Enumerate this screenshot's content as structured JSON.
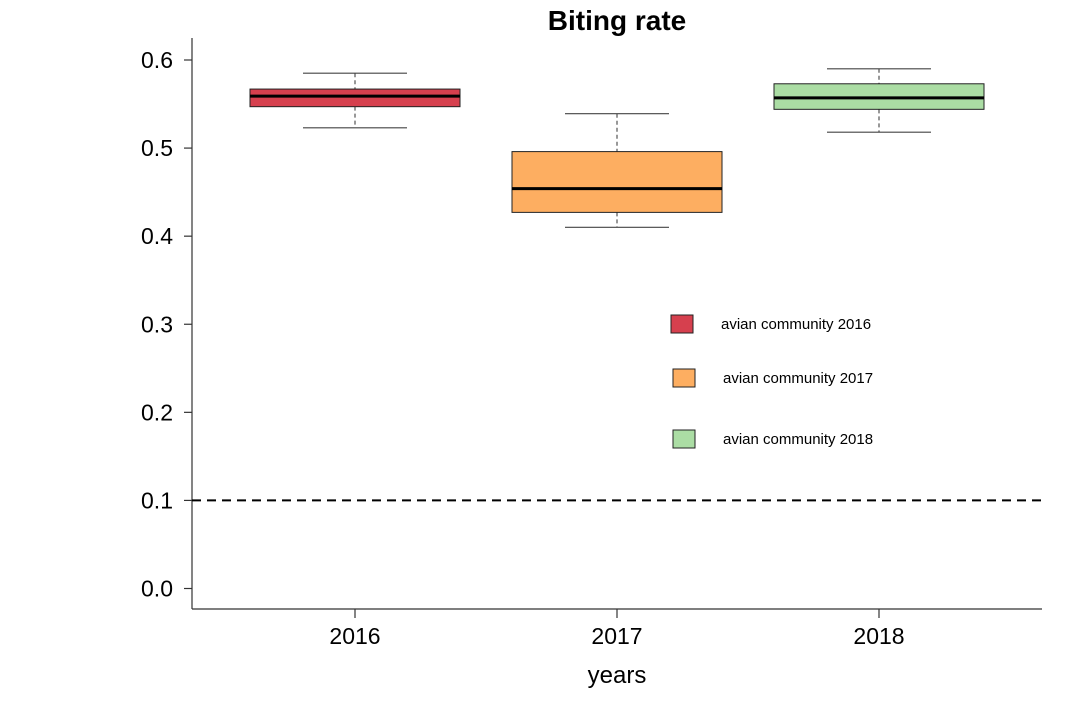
{
  "chart_data": {
    "type": "box",
    "title": "Biting rate",
    "xlabel": "years",
    "ylabel": "",
    "ylim": [
      0,
      0.62
    ],
    "yticks": [
      0.0,
      0.1,
      0.2,
      0.3,
      0.4,
      0.5,
      0.6
    ],
    "ytick_labels": [
      "0.0",
      "0.1",
      "0.2",
      "0.3",
      "0.4",
      "0.5",
      "0.6"
    ],
    "categories": [
      "2016",
      "2017",
      "2018"
    ],
    "boxes": [
      {
        "category": "2016",
        "whisker_low": 0.523,
        "q1": 0.547,
        "median": 0.559,
        "q3": 0.567,
        "whisker_high": 0.585,
        "color": "#d6404e"
      },
      {
        "category": "2017",
        "whisker_low": 0.41,
        "q1": 0.427,
        "median": 0.454,
        "q3": 0.496,
        "whisker_high": 0.539,
        "color": "#fdae61"
      },
      {
        "category": "2018",
        "whisker_low": 0.518,
        "q1": 0.544,
        "median": 0.557,
        "q3": 0.573,
        "whisker_high": 0.59,
        "color": "#abdda4"
      }
    ],
    "reference_line": {
      "y": 0.1,
      "style": "dashed"
    },
    "legend": {
      "position": "right-middle",
      "entries": [
        {
          "label": "avian community 2016",
          "color": "#d6404e"
        },
        {
          "label": "avian community 2017",
          "color": "#fdae61"
        },
        {
          "label": "avian community 2018",
          "color": "#abdda4"
        }
      ]
    }
  }
}
